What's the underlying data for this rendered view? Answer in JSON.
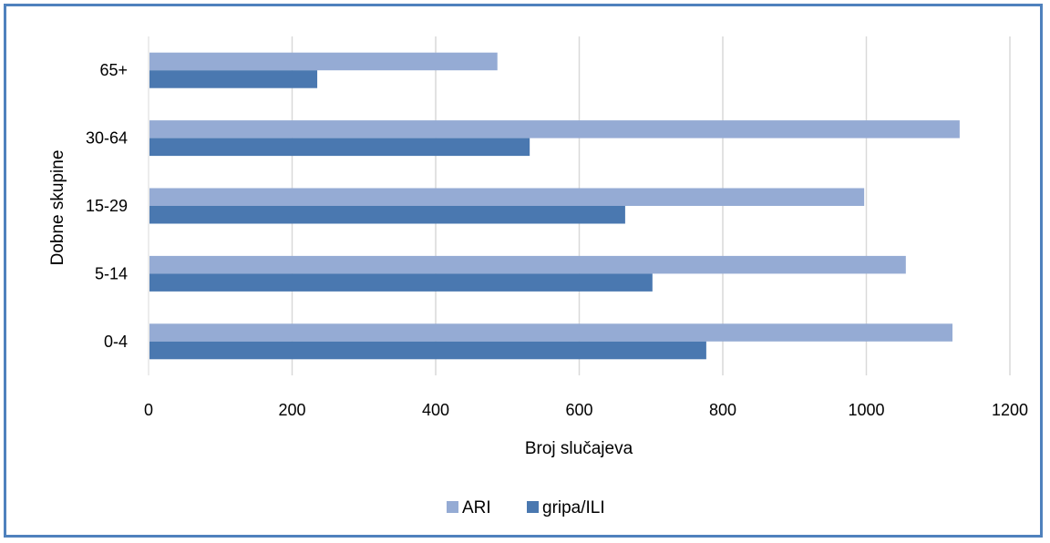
{
  "chart_data": {
    "type": "bar",
    "orientation": "horizontal",
    "categories": [
      "0-4",
      "5-14",
      "15-29",
      "30-64",
      "65+"
    ],
    "series": [
      {
        "name": "ARI",
        "color": "#95abd4",
        "values": [
          1120,
          1055,
          997,
          1130,
          486
        ]
      },
      {
        "name": "gripa/ILI",
        "color": "#4a78b0",
        "values": [
          777,
          702,
          664,
          531,
          235
        ]
      }
    ],
    "xlabel": "Broj slučajeva",
    "ylabel": "Dobne skupine",
    "xlim": [
      0,
      1200
    ],
    "xticks": [
      "0",
      "200",
      "400",
      "600",
      "800",
      "1000",
      "1200"
    ],
    "grid": true,
    "legend_position": "bottom"
  }
}
